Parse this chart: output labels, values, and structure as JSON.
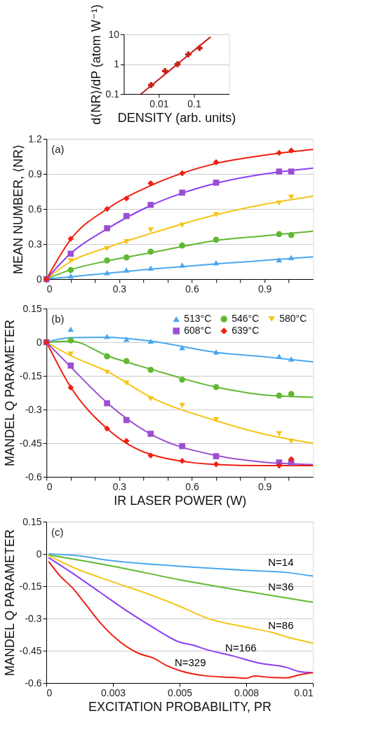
{
  "chart_data": [
    {
      "type": "scatter",
      "xlabel": "DENSITY (arb. units)",
      "ylabel": "d⟨NR⟩/dP (atom W⁻¹)",
      "log": "xy",
      "xlim": [
        0.001,
        1
      ],
      "ylim": [
        0.1,
        10
      ],
      "xticks": [
        0.01,
        0.1
      ],
      "yticks": [
        0.1,
        1,
        10
      ],
      "grid": "y",
      "series": [
        {
          "type": "scatter",
          "color": "#c8201a",
          "marker": "cross",
          "x": [
            0.006,
            0.015,
            0.034,
            0.069,
            0.144
          ],
          "values": [
            0.2,
            0.59,
            1.0,
            2.13,
            3.47
          ]
        },
        {
          "type": "line",
          "color": "#c8201a",
          "x": [
            0.0031,
            0.29
          ],
          "values": [
            0.1,
            8
          ]
        }
      ]
    },
    {
      "type": "scatter",
      "ylabel": "MEAN NUMBER, ⟨NR⟩",
      "annotations": [
        "(a)"
      ],
      "xlim": [
        0,
        1.1
      ],
      "ylim": [
        0,
        1.2
      ],
      "xticks": [
        0,
        {
          "value": 0.1,
          "label": null
        },
        {
          "value": 0.2,
          "label": null
        },
        0.3,
        {
          "value": 0.4,
          "label": null
        },
        {
          "value": 0.5,
          "label": null
        },
        0.6,
        {
          "value": 0.7,
          "label": null
        },
        {
          "value": 0.8,
          "label": null
        },
        0.9,
        {
          "value": 1.0,
          "label": null
        }
      ],
      "yticks": [
        0,
        0.3,
        0.6,
        0.9,
        1.2
      ],
      "grid": "y",
      "x": [
        0,
        0.1,
        0.25,
        0.33,
        0.43,
        0.56,
        0.7,
        0.96,
        1.01
      ],
      "series": [
        {
          "type": "line",
          "color": "#4aa8f0",
          "x": [
            0,
            0.1,
            0.25,
            0.43,
            0.7,
            0.9,
            1.1
          ],
          "values": [
            0,
            0.02,
            0.05,
            0.085,
            0.13,
            0.16,
            0.19
          ]
        },
        {
          "type": "line",
          "color": "#62b832",
          "x": [
            0,
            0.1,
            0.25,
            0.43,
            0.7,
            0.9,
            1.1
          ],
          "values": [
            0,
            0.08,
            0.155,
            0.225,
            0.33,
            0.37,
            0.41
          ]
        },
        {
          "type": "line",
          "color": "#f5c518",
          "x": [
            0,
            0.1,
            0.25,
            0.43,
            0.7,
            0.9,
            1.1
          ],
          "values": [
            0,
            0.15,
            0.27,
            0.39,
            0.55,
            0.64,
            0.71
          ]
        },
        {
          "type": "line",
          "color": "#8b3ff2",
          "x": [
            0,
            0.1,
            0.25,
            0.43,
            0.7,
            0.9,
            1.1
          ],
          "values": [
            0,
            0.22,
            0.43,
            0.63,
            0.82,
            0.9,
            0.95
          ]
        },
        {
          "type": "line",
          "color": "#f02010",
          "x": [
            0,
            0.1,
            0.25,
            0.43,
            0.7,
            0.9,
            1.1
          ],
          "values": [
            0,
            0.34,
            0.6,
            0.8,
            0.99,
            1.06,
            1.11
          ]
        },
        {
          "type": "scatter",
          "color": "#4aa8f0",
          "marker": "triangle",
          "values": [
            null,
            0.027,
            0.055,
            0.078,
            0.094,
            0.12,
            0.14,
            0.165,
            0.185
          ]
        },
        {
          "type": "scatter",
          "color": "#62b832",
          "marker": "circle",
          "values": [
            0,
            0.078,
            0.16,
            0.185,
            0.235,
            0.287,
            0.337,
            0.385,
            0.377
          ]
        },
        {
          "type": "scatter",
          "color": "#f5c518",
          "marker": "triangle-down",
          "values": [
            null,
            0.157,
            0.26,
            0.32,
            0.42,
            0.46,
            0.55,
            0.65,
            0.7
          ]
        },
        {
          "type": "scatter",
          "color": "#9b4fd0",
          "marker": "square",
          "values": [
            0,
            0.217,
            0.435,
            0.54,
            0.635,
            0.74,
            0.825,
            0.92,
            0.92
          ]
        },
        {
          "type": "scatter",
          "color": "#f02010",
          "marker": "diamond",
          "values": [
            0,
            0.345,
            0.6,
            0.69,
            0.82,
            0.905,
            1.0,
            1.08,
            1.1
          ]
        }
      ]
    },
    {
      "type": "scatter",
      "xlabel": "IR LASER POWER (W)",
      "ylabel": "MANDEL Q PARAMETER",
      "annotations": [
        "(b)"
      ],
      "xlim": [
        0,
        1.1
      ],
      "ylim": [
        -0.6,
        0.15
      ],
      "xticks": [
        0,
        {
          "value": 0.1,
          "label": null
        },
        {
          "value": 0.2,
          "label": null
        },
        0.3,
        {
          "value": 0.4,
          "label": null
        },
        {
          "value": 0.5,
          "label": null
        },
        0.6,
        {
          "value": 0.7,
          "label": null
        },
        {
          "value": 0.8,
          "label": null
        },
        0.9,
        {
          "value": 1.0,
          "label": null
        }
      ],
      "yticks": [
        -0.6,
        -0.45,
        -0.3,
        -0.15,
        0,
        0.15
      ],
      "grid": "y",
      "legend": "top right",
      "x": [
        0,
        0.1,
        0.25,
        0.33,
        0.43,
        0.56,
        0.7,
        0.96,
        1.01
      ],
      "series": [
        {
          "type": "line",
          "color": "#4aa8f0",
          "x": [
            0,
            0.1,
            0.25,
            0.43,
            0.7,
            0.9,
            1.1
          ],
          "values": [
            0,
            0.02,
            0.022,
            0.005,
            -0.045,
            -0.065,
            -0.088
          ]
        },
        {
          "type": "line",
          "color": "#62b832",
          "x": [
            0,
            0.1,
            0.25,
            0.43,
            0.7,
            0.9,
            1.1
          ],
          "values": [
            0,
            0.005,
            -0.06,
            -0.12,
            -0.2,
            -0.235,
            -0.245
          ]
        },
        {
          "type": "line",
          "color": "#f5c518",
          "x": [
            0,
            0.1,
            0.25,
            0.43,
            0.7,
            0.9,
            1.1
          ],
          "values": [
            0,
            -0.06,
            -0.13,
            -0.245,
            -0.35,
            -0.41,
            -0.45
          ]
        },
        {
          "type": "line",
          "color": "#9b4fd0",
          "x": [
            0,
            0.1,
            0.25,
            0.43,
            0.7,
            0.9,
            1.1
          ],
          "values": [
            0,
            -0.11,
            -0.27,
            -0.41,
            -0.505,
            -0.535,
            -0.545
          ]
        },
        {
          "type": "line",
          "color": "#f02010",
          "x": [
            0,
            0.1,
            0.25,
            0.43,
            0.7,
            0.9,
            1.1
          ],
          "values": [
            0,
            -0.2,
            -0.385,
            -0.5,
            -0.545,
            -0.55,
            -0.55
          ]
        },
        {
          "type": "scatter",
          "name": "513°C",
          "color": "#4aa8f0",
          "marker": "triangle",
          "values": [
            null,
            0.058,
            0.026,
            0.013,
            0.005,
            -0.024,
            -0.044,
            -0.063,
            -0.075
          ]
        },
        {
          "type": "scatter",
          "name": "546°C",
          "color": "#62b832",
          "marker": "circle",
          "values": [
            0,
            0.008,
            -0.063,
            -0.084,
            -0.123,
            -0.167,
            -0.2,
            -0.238,
            -0.231
          ]
        },
        {
          "type": "scatter",
          "name": "580°C",
          "color": "#f5c518",
          "marker": "triangle-down",
          "values": [
            null,
            -0.053,
            -0.134,
            -0.182,
            -0.252,
            -0.282,
            -0.345,
            -0.408,
            -0.442
          ]
        },
        {
          "type": "scatter",
          "name": "608°C",
          "color": "#9b4fd0",
          "marker": "square",
          "values": [
            0,
            -0.104,
            -0.272,
            -0.347,
            -0.408,
            -0.463,
            -0.508,
            -0.536,
            -0.536
          ]
        },
        {
          "type": "scatter",
          "name": "639°C",
          "color": "#f02010",
          "marker": "diamond",
          "values": [
            0,
            -0.202,
            -0.385,
            -0.44,
            -0.505,
            -0.529,
            -0.544,
            -0.55,
            -0.521
          ]
        }
      ]
    },
    {
      "type": "line",
      "xlabel": "EXCITATION PROBABILITY, PR",
      "ylabel": "MANDEL Q PARAMETER",
      "annotations": [
        "(c)"
      ],
      "xlim": [
        0,
        0.01
      ],
      "ylim": [
        -0.6,
        0.15
      ],
      "xticks": [
        0,
        {
          "value": 0.0025,
          "label": "0.003"
        },
        0.005,
        {
          "value": 0.0075,
          "label": "0.008"
        },
        0.01
      ],
      "yticks": [
        -0.6,
        -0.45,
        -0.3,
        -0.15,
        0,
        0.15
      ],
      "grid": "y",
      "series": [
        {
          "name": "N=14",
          "color": "#4aa8f0",
          "x": [
            0.0001,
            0.001,
            0.0025,
            0.005,
            0.0075,
            0.009,
            0.01
          ],
          "values": [
            0.0,
            -0.006,
            -0.032,
            -0.057,
            -0.076,
            -0.086,
            -0.103
          ]
        },
        {
          "name": "N=36",
          "color": "#62b832",
          "x": [
            0.0001,
            0.0025,
            0.005,
            0.0075,
            0.01
          ],
          "values": [
            -0.005,
            -0.057,
            -0.12,
            -0.174,
            -0.225
          ]
        },
        {
          "name": "N=86",
          "color": "#f5c518",
          "x": [
            0.0001,
            0.001,
            0.0025,
            0.004,
            0.005,
            0.006,
            0.0075,
            0.0085,
            0.009,
            0.01
          ],
          "values": [
            -0.008,
            -0.062,
            -0.13,
            -0.194,
            -0.243,
            -0.297,
            -0.341,
            -0.366,
            -0.385,
            -0.415
          ]
        },
        {
          "name": "N=166",
          "color": "#8b3ff2",
          "x": [
            0.0001,
            0.001,
            0.002,
            0.003,
            0.004,
            0.005,
            0.0055,
            0.006,
            0.007,
            0.008,
            0.009,
            0.0095,
            0.01
          ],
          "values": [
            -0.018,
            -0.091,
            -0.177,
            -0.263,
            -0.341,
            -0.41,
            -0.424,
            -0.444,
            -0.474,
            -0.508,
            -0.527,
            -0.547,
            -0.552
          ]
        },
        {
          "name": "N=329",
          "color": "#f02010",
          "x": [
            0.0001,
            0.0005,
            0.001,
            0.0015,
            0.002,
            0.003,
            0.0035,
            0.004,
            0.0045,
            0.005,
            0.006,
            0.007,
            0.0075,
            0.0078,
            0.0085,
            0.009,
            0.0095,
            0.01
          ],
          "values": [
            -0.037,
            -0.1,
            -0.16,
            -0.238,
            -0.317,
            -0.43,
            -0.464,
            -0.483,
            -0.518,
            -0.542,
            -0.567,
            -0.574,
            -0.578,
            -0.567,
            -0.575,
            -0.576,
            -0.562,
            -0.552
          ]
        }
      ]
    }
  ]
}
